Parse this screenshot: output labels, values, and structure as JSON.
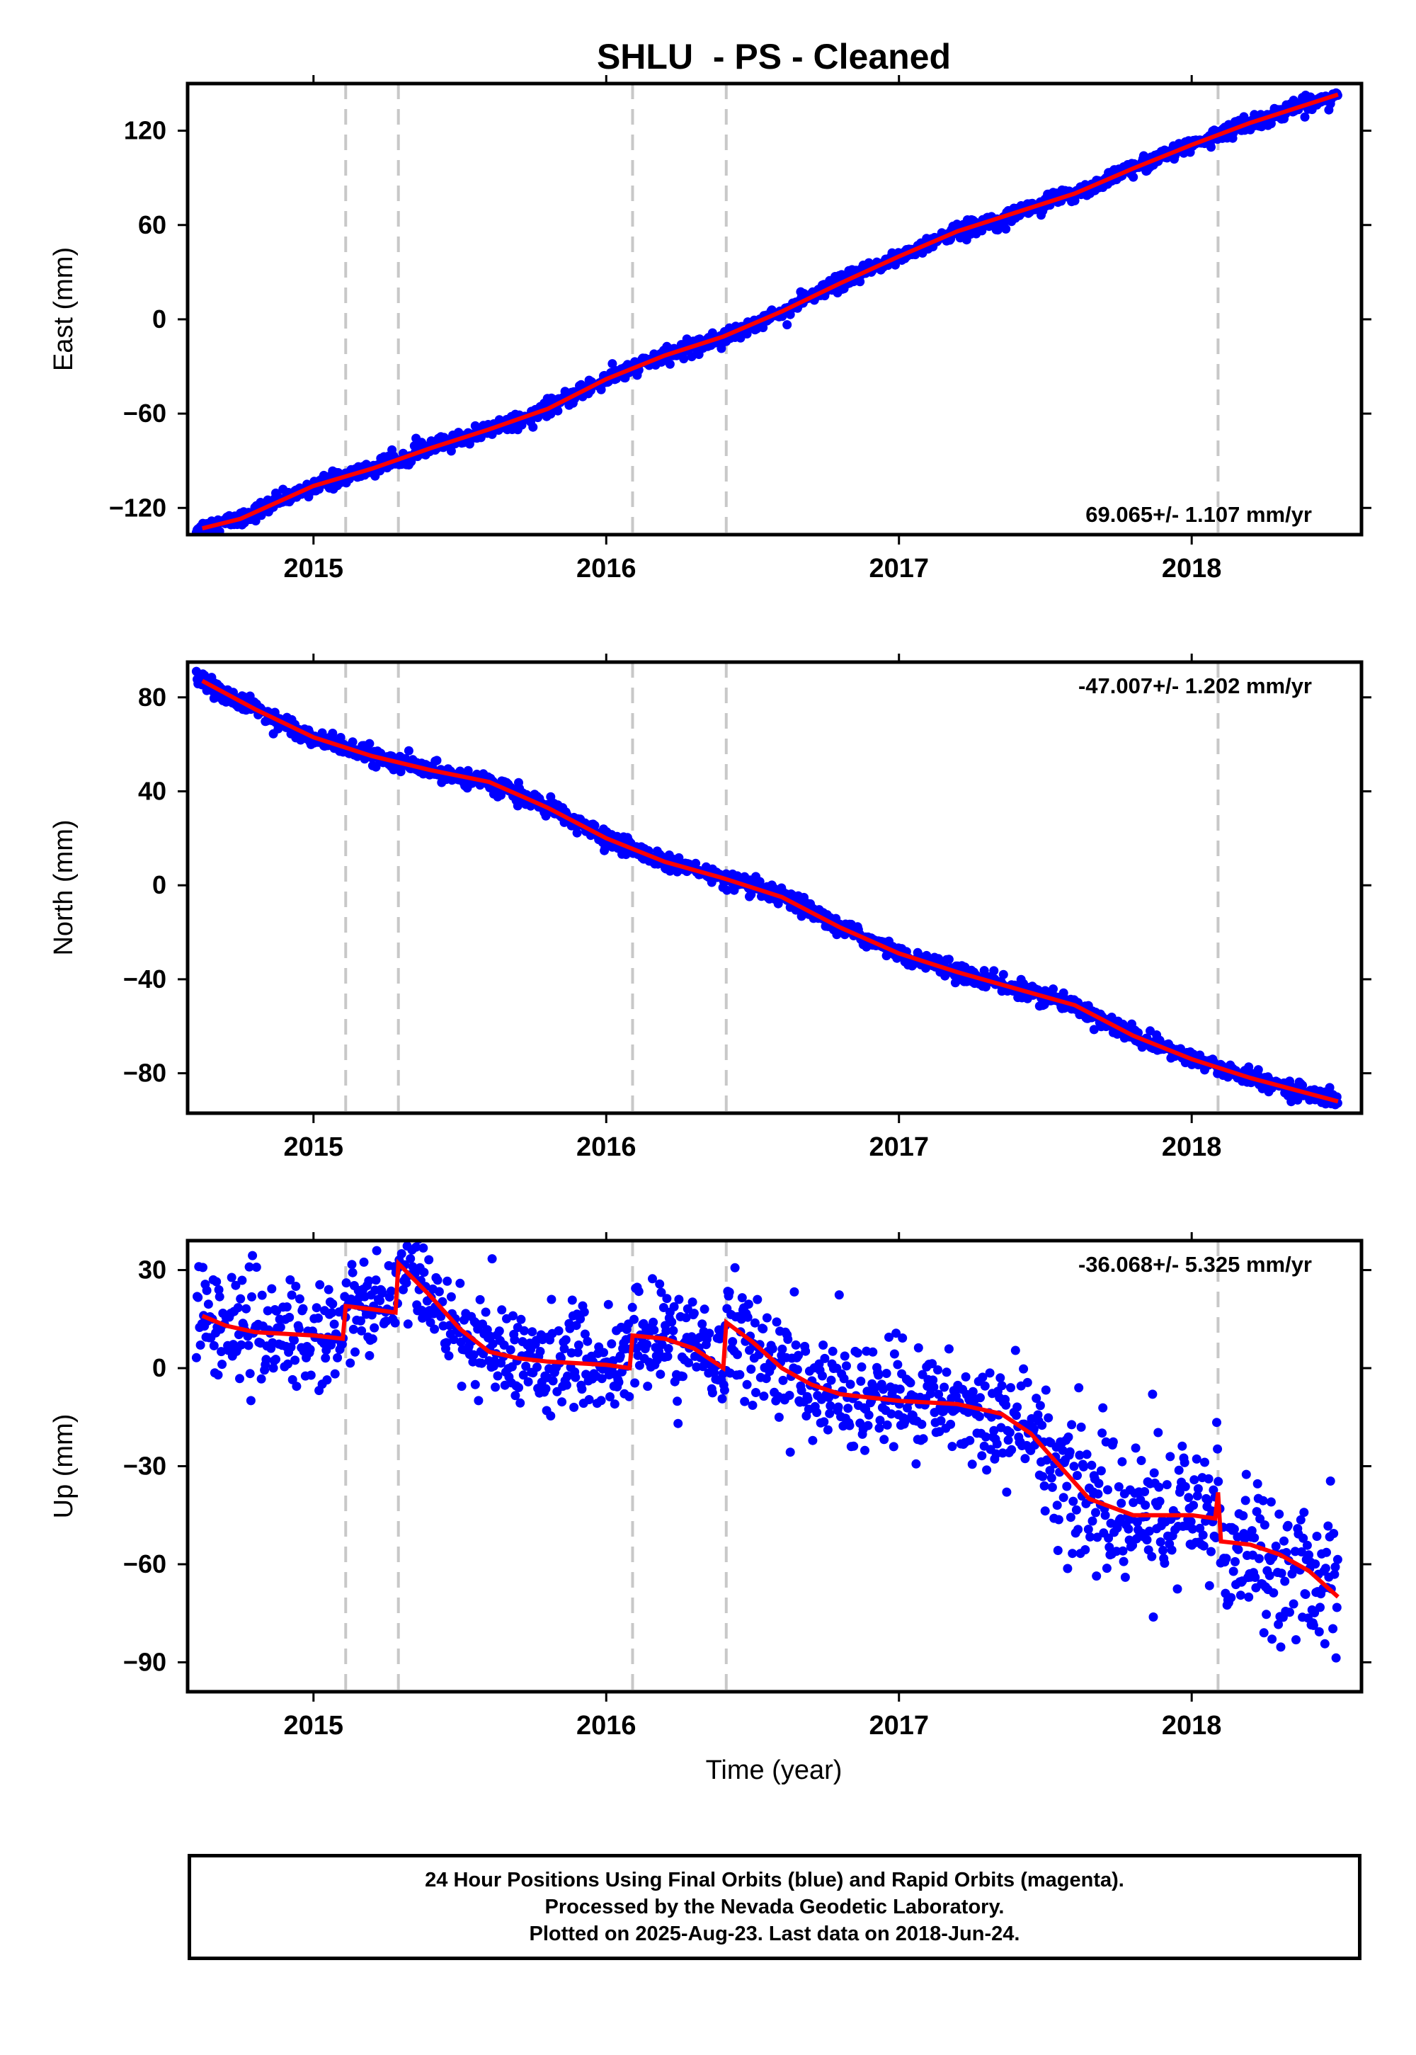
{
  "title": "SHLU  - PS - Cleaned",
  "xlabel": "Time (year)",
  "caption": {
    "line1": "24 Hour Positions Using Final Orbits (blue) and Rapid Orbits (magenta).",
    "line2": "Processed by the Nevada Geodetic Laboratory.",
    "line3": "Plotted on 2025-Aug-23. Last data on 2018-Jun-24."
  },
  "colors": {
    "points": "#0000ff",
    "fit": "#ff0000",
    "event_lines": "#c8c8c8",
    "frame": "#000000"
  },
  "chart_data": [
    {
      "type": "scatter",
      "panel": "east",
      "ylabel": "East (mm)",
      "rate_label": "69.065+/- 1.107 mm/yr",
      "rate_label_position": "bottom-right",
      "xlim": [
        2014.57,
        2018.58
      ],
      "ylim": [
        -137,
        150
      ],
      "yticks": [
        -120,
        -60,
        0,
        60,
        120
      ],
      "xticks": [
        2015,
        2016,
        2017,
        2018
      ],
      "event_lines": [
        2015.11,
        2015.29,
        2016.09,
        2016.41,
        2018.09
      ],
      "noise_mm": 2.5,
      "fit": {
        "x": [
          2014.62,
          2014.75,
          2015.0,
          2015.2,
          2015.4,
          2015.6,
          2015.8,
          2016.0,
          2016.2,
          2016.4,
          2016.6,
          2016.8,
          2017.0,
          2017.2,
          2017.4,
          2017.6,
          2017.8,
          2018.0,
          2018.2,
          2018.35,
          2018.5
        ],
        "y": [
          -133,
          -127,
          -106,
          -95,
          -82,
          -70,
          -57,
          -38,
          -23,
          -11,
          5,
          23,
          40,
          56,
          68,
          80,
          96,
          111,
          125,
          134,
          143
        ]
      }
    },
    {
      "type": "scatter",
      "panel": "north",
      "ylabel": "North (mm)",
      "rate_label": "-47.007+/- 1.202 mm/yr",
      "rate_label_position": "top-right",
      "xlim": [
        2014.57,
        2018.58
      ],
      "ylim": [
        -97,
        95
      ],
      "yticks": [
        -80,
        -40,
        0,
        40,
        80
      ],
      "xticks": [
        2015,
        2016,
        2017,
        2018
      ],
      "event_lines": [
        2015.11,
        2015.29,
        2016.09,
        2016.41,
        2018.09
      ],
      "noise_mm": 1.8,
      "fit": {
        "x": [
          2014.62,
          2014.8,
          2015.0,
          2015.2,
          2015.4,
          2015.6,
          2015.8,
          2016.0,
          2016.2,
          2016.4,
          2016.6,
          2016.8,
          2017.0,
          2017.2,
          2017.4,
          2017.6,
          2017.8,
          2018.0,
          2018.2,
          2018.35,
          2018.5
        ],
        "y": [
          87,
          75,
          63,
          55,
          49,
          44,
          33,
          20,
          10,
          3,
          -5,
          -18,
          -29,
          -37,
          -44,
          -51,
          -64,
          -74,
          -82,
          -87,
          -92
        ]
      }
    },
    {
      "type": "scatter",
      "panel": "up",
      "ylabel": "Up (mm)",
      "rate_label": "-36.068+/- 5.325 mm/yr",
      "rate_label_position": "top-right",
      "xlim": [
        2014.57,
        2018.58
      ],
      "ylim": [
        -99,
        39
      ],
      "yticks": [
        -90,
        -60,
        -30,
        0,
        30
      ],
      "xticks": [
        2015,
        2016,
        2017,
        2018
      ],
      "event_lines": [
        2015.11,
        2015.29,
        2016.09,
        2016.41,
        2018.09
      ],
      "noise_mm": 8,
      "fit": {
        "x": [
          2014.62,
          2014.7,
          2014.8,
          2015.0,
          2015.1,
          2015.11,
          2015.2,
          2015.28,
          2015.29,
          2015.4,
          2015.5,
          2015.6,
          2015.7,
          2015.8,
          2016.0,
          2016.08,
          2016.09,
          2016.2,
          2016.3,
          2016.4,
          2016.41,
          2016.5,
          2016.6,
          2016.7,
          2016.8,
          2017.0,
          2017.2,
          2017.35,
          2017.45,
          2017.55,
          2017.65,
          2017.8,
          2018.0,
          2018.08,
          2018.09,
          2018.1,
          2018.2,
          2018.3,
          2018.4,
          2018.5
        ],
        "y": [
          16,
          13,
          11,
          10,
          9,
          19,
          18,
          17,
          32,
          22,
          12,
          5,
          3,
          2,
          1,
          0,
          10,
          9,
          6,
          0,
          14,
          8,
          0,
          -5,
          -8,
          -10,
          -11,
          -14,
          -20,
          -30,
          -40,
          -45,
          -45,
          -46,
          -38,
          -53,
          -54,
          -57,
          -62,
          -70
        ]
      }
    }
  ]
}
